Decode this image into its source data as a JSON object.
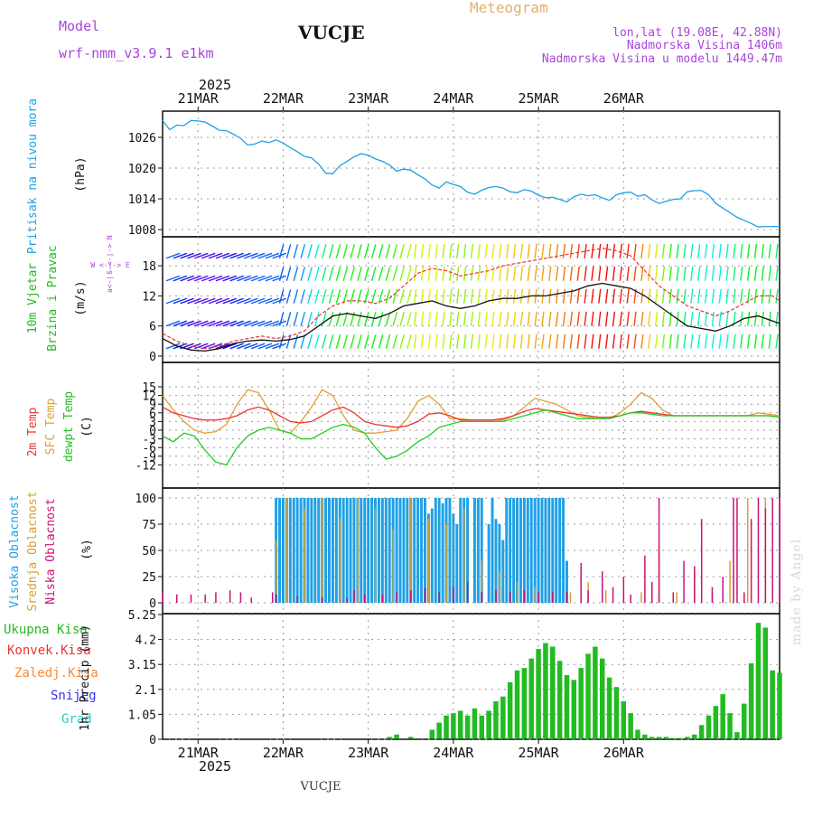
{
  "header": {
    "model_label": "Model",
    "model_name": "wrf-nmm_v3.9.1  e1km",
    "station": "VUCJE",
    "product": "Meteogram",
    "coords": "lon,lat (19.08E, 42.88N)",
    "elev": "Nadmorska Visina 1406m",
    "model_elev": "Nadmorska Visina u modelu 1449.47m",
    "year_top": "2025",
    "year_bottom": "2025",
    "footer_station": "VUCJE",
    "watermark": "made by Angel"
  },
  "dates": [
    "21MAR",
    "22MAR",
    "23MAR",
    "24MAR",
    "25MAR",
    "26MAR"
  ],
  "colors": {
    "pressure": "#1ea0e6",
    "wind_label": "#22bb22",
    "wind_units": "#111111",
    "t2m": "#ee3333",
    "tsfc": "#e0a030",
    "tdew": "#22cc22",
    "cloud_high": "#1ea0e6",
    "cloud_mid": "#d4a030",
    "cloud_low": "#cc1177",
    "precip_total": "#22bb22",
    "precip_conv": "#ee3333",
    "precip_frozen": "#ff8833",
    "precip_snow": "#3333ee",
    "precip_grad": "#22cccc",
    "model_text": "#aa44dd",
    "meteogram_text": "#e0b070"
  },
  "panels": {
    "pressure": {
      "label1": "Pritisak  na  nivou  mora",
      "unit": "(hPa)",
      "ticks": [
        "1008",
        "1014",
        "1020",
        "1026"
      ]
    },
    "wind": {
      "label1": "10m  Vjetar",
      "label2": "Brzina  i  Pravac",
      "unit": "(m/s)",
      "ticks": [
        "0",
        "6",
        "12",
        "18"
      ],
      "compass": "W  <-|->  E",
      "compass_v": "S <-|-> N",
      "compass_a": "a<-|-"
    },
    "temp": {
      "label1": "2m  Temp",
      "label2": "SFC  Temp",
      "label3": "dewpt  Temp",
      "unit": "(C)",
      "ticks": [
        "-12",
        "-9",
        "-6",
        "-3",
        "0",
        "3",
        "6",
        "9",
        "12",
        "15"
      ]
    },
    "cloud": {
      "label1": "Visoka  Oblacnost",
      "label2": "Srednja  Oblacnost",
      "label3": "Niska  Oblacnost",
      "unit": "(%)",
      "ticks": [
        "0",
        "25",
        "50",
        "75",
        "100"
      ]
    },
    "precip": {
      "label_total": "Ukupna  Kisa",
      "label_conv": "Konvek.Kisa",
      "label_frozen": "Zaledj.Kisa",
      "label_snow": "Snijeg",
      "label_grad": "Grad",
      "unit": "1hr  Precip  (mm)",
      "ticks": [
        "0",
        "1.05",
        "2.1",
        "3.15",
        "4.2",
        "5.25"
      ]
    }
  },
  "chart_data": [
    {
      "type": "line",
      "name": "pressure",
      "x_start_hour": -10,
      "x": [
        -10,
        -8,
        -6,
        -4,
        -2,
        0,
        2,
        4,
        6,
        8,
        10,
        12,
        14,
        16,
        18,
        20,
        22,
        24,
        26,
        28,
        30,
        32,
        34,
        36,
        38,
        40,
        42,
        44,
        46,
        48,
        50,
        52,
        54,
        56,
        58,
        60,
        62,
        64,
        66,
        68,
        70,
        72,
        74,
        76,
        78,
        80,
        82,
        84,
        86,
        88,
        90,
        92,
        94,
        96,
        98,
        100,
        102,
        104,
        106,
        108,
        110,
        112,
        114,
        116,
        118,
        120,
        122,
        124,
        126,
        128,
        130,
        132,
        134,
        136,
        138,
        140,
        142,
        144,
        146,
        148,
        150,
        152,
        154,
        156,
        158,
        160,
        162,
        164
      ],
      "y": [
        1029.3,
        1027.5,
        1028.4,
        1028.3,
        1029.3,
        1029.2,
        1029.0,
        1028.2,
        1027.4,
        1027.3,
        1026.6,
        1025.8,
        1024.5,
        1024.7,
        1025.3,
        1025.0,
        1025.5,
        1024.9,
        1024.0,
        1023.2,
        1022.3,
        1022.0,
        1020.8,
        1019.0,
        1018.9,
        1020.5,
        1021.3,
        1022.2,
        1022.8,
        1022.5,
        1021.8,
        1021.3,
        1020.6,
        1019.4,
        1019.8,
        1019.6,
        1018.7,
        1017.9,
        1016.7,
        1016.1,
        1017.3,
        1016.8,
        1016.4,
        1015.3,
        1014.9,
        1015.7,
        1016.2,
        1016.4,
        1016.1,
        1015.4,
        1015.2,
        1015.8,
        1015.5,
        1014.7,
        1014.2,
        1014.3,
        1013.9,
        1013.4,
        1014.4,
        1014.9,
        1014.6,
        1014.8,
        1014.2,
        1013.7,
        1014.8,
        1015.2,
        1015.3,
        1014.5,
        1014.8,
        1013.8,
        1013.1,
        1013.5,
        1013.9,
        1014.0,
        1015.4,
        1015.6,
        1015.6,
        1014.8,
        1013.1,
        1012.2,
        1011.3,
        1010.4,
        1009.8,
        1009.2,
        1008.5,
        1008.6,
        1008.6,
        1008.6
      ],
      "ylim": [
        1008,
        1032
      ]
    },
    {
      "type": "line",
      "name": "wind",
      "speed_x": [
        -10,
        -6,
        -2,
        2,
        6,
        10,
        14,
        18,
        22,
        26,
        30,
        34,
        38,
        42,
        46,
        50,
        54,
        58,
        62,
        66,
        70,
        74,
        78,
        82,
        86,
        90,
        94,
        98,
        102,
        106,
        110,
        114,
        118,
        122,
        126,
        130,
        134,
        138,
        142,
        146,
        150,
        154,
        158,
        162,
        164
      ],
      "speed_y": [
        3.5,
        2.0,
        1.2,
        1.0,
        1.5,
        2.5,
        3.0,
        3.2,
        3.0,
        3.3,
        4.0,
        6.0,
        8.0,
        8.5,
        8.0,
        7.5,
        8.5,
        10.0,
        10.5,
        11.0,
        10.0,
        9.5,
        10.0,
        11.0,
        11.5,
        11.5,
        12.0,
        12.0,
        12.5,
        13.0,
        14.0,
        14.5,
        14.0,
        13.5,
        12.0,
        10.0,
        8.0,
        6.0,
        5.5,
        5.0,
        6.0,
        7.5,
        8.0,
        7.0,
        6.5
      ],
      "gust_y": [
        4.5,
        3.0,
        2.0,
        1.5,
        2.0,
        3.0,
        3.5,
        4.0,
        3.5,
        4.0,
        5.0,
        8.0,
        10.0,
        11.0,
        11.0,
        10.5,
        11.5,
        14.0,
        16.5,
        17.5,
        17.0,
        16.0,
        16.5,
        17.0,
        18.0,
        18.5,
        19.0,
        19.5,
        20.0,
        20.5,
        21.0,
        21.5,
        21.0,
        20.0,
        17.0,
        14.0,
        12.0,
        10.0,
        9.0,
        8.0,
        9.0,
        10.5,
        12.0,
        12.0,
        11.0
      ],
      "ylim": [
        -1,
        24
      ]
    },
    {
      "type": "line",
      "name": "temperature",
      "x": [
        -10,
        -7,
        -4,
        -1,
        2,
        5,
        8,
        11,
        14,
        17,
        20,
        23,
        26,
        29,
        32,
        35,
        38,
        41,
        44,
        47,
        50,
        53,
        56,
        59,
        62,
        65,
        68,
        71,
        74,
        77,
        80,
        83,
        86,
        89,
        92,
        95,
        98,
        101,
        104,
        107,
        110,
        113,
        116,
        119,
        122,
        125,
        128,
        131,
        134,
        137,
        140,
        143,
        146,
        149,
        152,
        155,
        158,
        161,
        164
      ],
      "series": [
        {
          "name": "2m Temp",
          "values": [
            8,
            6,
            5,
            4,
            3.5,
            3.5,
            4,
            5,
            7,
            8,
            7,
            5,
            3,
            2.5,
            3,
            5,
            7,
            8,
            6,
            3,
            2,
            1.5,
            1,
            1.5,
            3,
            5.5,
            6,
            5,
            3.5,
            3.5,
            3.5,
            3.5,
            4,
            5,
            6.5,
            7.5,
            7,
            6.5,
            6,
            5.5,
            5,
            4.5,
            4.5,
            5,
            6,
            6.5,
            6,
            5.5,
            5,
            5,
            5,
            5,
            5,
            5,
            5,
            5,
            5,
            5,
            4.5
          ]
        },
        {
          "name": "SFC Temp",
          "values": [
            12,
            7,
            3,
            0,
            -1,
            -0.5,
            2,
            9,
            14,
            13,
            7,
            0,
            -1,
            3,
            8,
            14,
            12,
            5,
            0,
            -1,
            -1,
            -0.5,
            0,
            4,
            10,
            12,
            9,
            4,
            4,
            3.5,
            3.5,
            3.5,
            3.5,
            5,
            8,
            11,
            10,
            9,
            7,
            5,
            4.5,
            4,
            4,
            6,
            9,
            13,
            11,
            7,
            5,
            5,
            5,
            5,
            5,
            5,
            5,
            5,
            6,
            5.5,
            5
          ]
        },
        {
          "name": "dewpt Temp",
          "values": [
            -2,
            -4,
            -1,
            -2,
            -7,
            -11,
            -12,
            -6,
            -2,
            0,
            1,
            0,
            -1,
            -3,
            -3,
            -1,
            1,
            2,
            1,
            -1,
            -6,
            -10,
            -9,
            -7,
            -4,
            -2,
            1,
            2,
            3,
            3,
            3,
            3,
            3,
            4,
            5,
            6,
            7,
            6,
            5,
            4,
            4,
            4,
            4,
            5,
            6,
            6,
            5.5,
            5,
            5,
            5,
            5,
            5,
            5,
            5,
            5,
            5,
            5,
            5,
            4.5
          ]
        }
      ],
      "ylim": [
        -14,
        15
      ]
    },
    {
      "type": "bar",
      "name": "cloud_cover",
      "high_hours": [
        22,
        23,
        24,
        25,
        26,
        27,
        28,
        29,
        30,
        31,
        32,
        33,
        34,
        35,
        36,
        37,
        38,
        39,
        40,
        41,
        42,
        43,
        44,
        45,
        46,
        47,
        48,
        49,
        50,
        51,
        52,
        53,
        54,
        55,
        56,
        57,
        58,
        59,
        60,
        61,
        62,
        63,
        64,
        65,
        66,
        67,
        68,
        69,
        70,
        71,
        72,
        73,
        74,
        75,
        76,
        78,
        79,
        80,
        82,
        83,
        84,
        85,
        86,
        87,
        88,
        89,
        90,
        91,
        92,
        93,
        94,
        95,
        96,
        97,
        98,
        99,
        100,
        101,
        102,
        103,
        104
      ],
      "high_values": [
        100,
        100,
        100,
        100,
        100,
        100,
        100,
        100,
        100,
        100,
        100,
        100,
        100,
        100,
        100,
        100,
        100,
        100,
        100,
        100,
        100,
        100,
        100,
        100,
        100,
        100,
        100,
        100,
        100,
        100,
        100,
        100,
        100,
        100,
        100,
        100,
        100,
        100,
        100,
        100,
        100,
        100,
        100,
        85,
        90,
        100,
        100,
        95,
        100,
        100,
        85,
        75,
        100,
        100,
        100,
        100,
        100,
        100,
        75,
        100,
        80,
        75,
        60,
        100,
        100,
        100,
        100,
        100,
        100,
        100,
        100,
        100,
        100,
        100,
        100,
        100,
        100,
        100,
        100,
        100,
        40
      ],
      "low_hours": [
        -10,
        -6,
        -2,
        2,
        5,
        9,
        12,
        15,
        21,
        22,
        28,
        35,
        42,
        44,
        47,
        52,
        56,
        60,
        64,
        68,
        72,
        76,
        80,
        84,
        88,
        92,
        96,
        100,
        104,
        108,
        110,
        114,
        117,
        120,
        122,
        126,
        128,
        130,
        134,
        137,
        140,
        142,
        145,
        148,
        151,
        152,
        154,
        156,
        158,
        160,
        162,
        164
      ],
      "low_values": [
        10,
        8,
        8,
        8,
        10,
        12,
        10,
        5,
        10,
        8,
        6,
        5,
        5,
        12,
        8,
        8,
        10,
        12,
        14,
        10,
        15,
        20,
        10,
        12,
        10,
        12,
        10,
        10,
        10,
        38,
        12,
        30,
        15,
        25,
        8,
        45,
        20,
        100,
        10,
        40,
        35,
        80,
        15,
        25,
        100,
        100,
        10,
        80,
        100,
        90,
        100,
        100
      ],
      "mid_hours": [
        22,
        25,
        30,
        35,
        40,
        45,
        50,
        55,
        60,
        65,
        70,
        75,
        80,
        85,
        90,
        95,
        100,
        105,
        110,
        115,
        120,
        125,
        130,
        135,
        140,
        145,
        150,
        155,
        160
      ],
      "mid_values": [
        60,
        100,
        90,
        100,
        80,
        100,
        90,
        70,
        100,
        80,
        75,
        90,
        40,
        30,
        20,
        15,
        8,
        10,
        20,
        12,
        8,
        10,
        55,
        10,
        30,
        10,
        40,
        100,
        100
      ],
      "ylim": [
        0,
        100
      ]
    },
    {
      "type": "bar",
      "name": "precip_total",
      "x": [
        54,
        56,
        60,
        66,
        68,
        70,
        72,
        74,
        76,
        78,
        80,
        82,
        84,
        86,
        88,
        90,
        92,
        94,
        96,
        98,
        100,
        102,
        104,
        106,
        108,
        110,
        112,
        114,
        116,
        118,
        120,
        122,
        124,
        126,
        128,
        130,
        132,
        134,
        136,
        138,
        140,
        142,
        144,
        146,
        148,
        150,
        152,
        154,
        156,
        158,
        160,
        162,
        164
      ],
      "values": [
        0.1,
        0.2,
        0.1,
        0.4,
        0.7,
        1.0,
        1.1,
        1.2,
        1.0,
        1.3,
        1.0,
        1.2,
        1.6,
        1.8,
        2.4,
        2.9,
        3.0,
        3.4,
        3.8,
        4.05,
        3.9,
        3.3,
        2.7,
        2.5,
        3.0,
        3.6,
        3.9,
        3.4,
        2.6,
        2.2,
        1.6,
        1.1,
        0.4,
        0.2,
        0.1,
        0.1,
        0.1,
        0.05,
        0.05,
        0.1,
        0.2,
        0.6,
        1.0,
        1.4,
        1.9,
        1.1,
        0.3,
        1.5,
        3.2,
        4.9,
        4.7,
        2.9,
        2.8
      ],
      "ylim": [
        0,
        5.25
      ]
    }
  ]
}
